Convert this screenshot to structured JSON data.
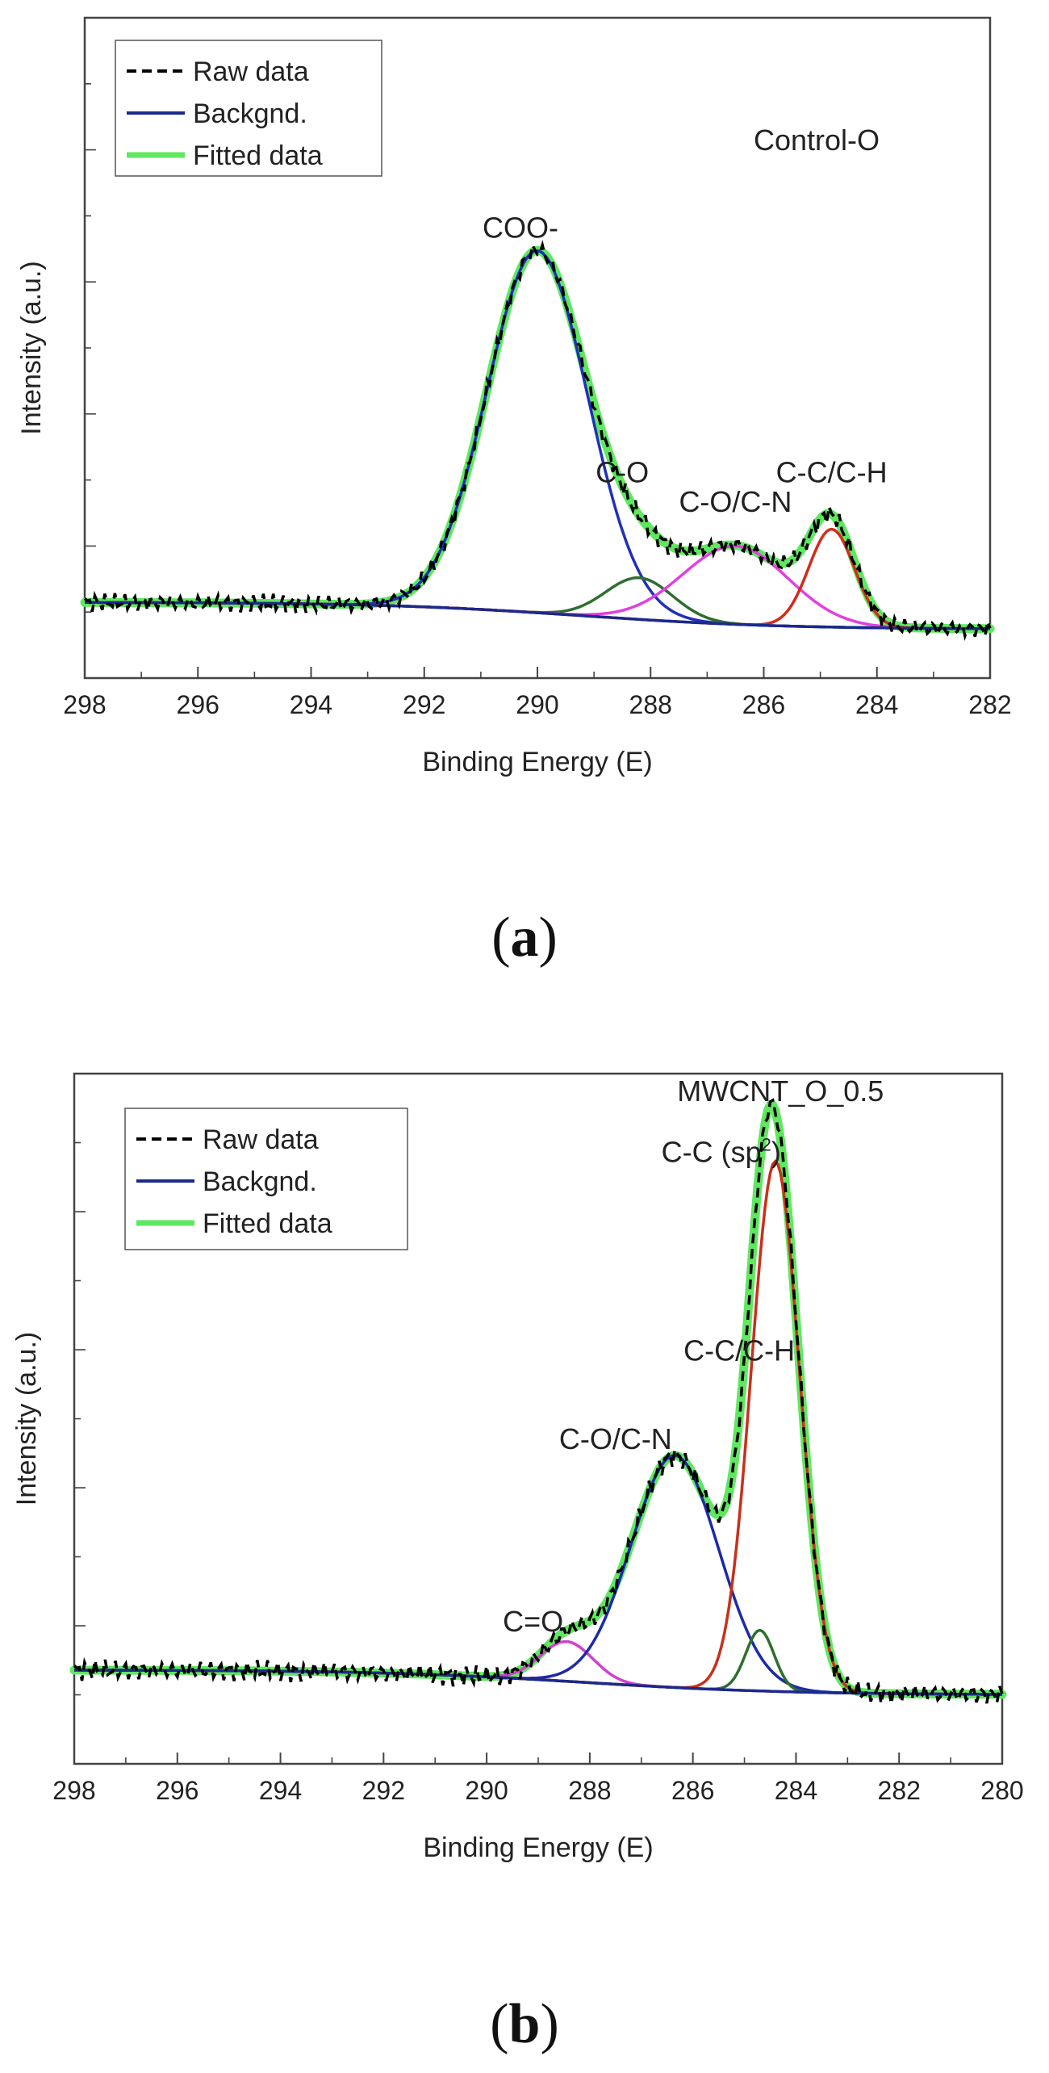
{
  "figure_labels": [
    {
      "open": "(",
      "letter": "a",
      "close": ")"
    },
    {
      "open": "(",
      "letter": "b",
      "close": ")"
    }
  ],
  "colors": {
    "raw": "#000000",
    "background": "#1a2a8c",
    "fitted": "#5fe85f",
    "coo": "#2030b8",
    "co": "#2f6e2f",
    "con": "#e040e0",
    "cch": "#d42a1a",
    "csp2": "#c8301a",
    "c_eq_o": "#d040d0",
    "con_b": "#1c2aa8",
    "cch_b": "#2f6e2f"
  },
  "chart_data": [
    {
      "type": "line",
      "title": "Control-O",
      "xlabel": "Binding Energy (E)",
      "ylabel": "Intensity (a.u.)",
      "xlim": [
        298,
        282
      ],
      "xticks": [
        298,
        296,
        294,
        292,
        290,
        288,
        286,
        284,
        282
      ],
      "ylim": [
        -0.1,
        1.25
      ],
      "legend": {
        "position": "top-left",
        "entries": [
          {
            "label": "Raw data",
            "key": "raw",
            "style": "dashed"
          },
          {
            "label": "Backgnd.",
            "key": "background",
            "style": "solid"
          },
          {
            "label": "Fitted data",
            "key": "fitted",
            "style": "solid"
          }
        ]
      },
      "background": {
        "left": 0.055,
        "right": 0.0
      },
      "peaks": [
        {
          "name": "COO-",
          "center": 290.0,
          "height": 0.74,
          "fwhm": 2.1,
          "color": "coo"
        },
        {
          "name": "C-O",
          "center": 288.2,
          "height": 0.085,
          "fwhm": 1.4,
          "color": "co"
        },
        {
          "name": "C-O/C-N",
          "center": 286.5,
          "height": 0.16,
          "fwhm": 2.2,
          "color": "con"
        },
        {
          "name": "C-C/C-H",
          "center": 284.8,
          "height": 0.2,
          "fwhm": 0.95,
          "color": "cch"
        }
      ],
      "annotations": [
        {
          "text": "COO-",
          "x": 290.3,
          "y": 0.8
        },
        {
          "text": "C-O",
          "x": 288.5,
          "y": 0.3
        },
        {
          "text": "C-O/C-N",
          "x": 286.5,
          "y": 0.24
        },
        {
          "text": "C-C/C-H",
          "x": 284.8,
          "y": 0.3
        }
      ]
    },
    {
      "type": "line",
      "title": "MWCNT_O_0.5",
      "xlabel": "Binding Energy (E)",
      "ylabel": "Intensity (a.u.)",
      "xlim": [
        298,
        280
      ],
      "xticks": [
        298,
        296,
        294,
        292,
        290,
        288,
        286,
        284,
        282,
        280
      ],
      "ylim": [
        -0.13,
        1.12
      ],
      "legend": {
        "position": "top-left",
        "entries": [
          {
            "label": "Raw data",
            "key": "raw",
            "style": "dashed"
          },
          {
            "label": "Backgnd.",
            "key": "background",
            "style": "solid"
          },
          {
            "label": "Fitted data",
            "key": "fitted",
            "style": "solid"
          }
        ]
      },
      "background": {
        "left": 0.04,
        "right": -0.005
      },
      "peaks": [
        {
          "name": "C=O",
          "center": 288.45,
          "height": 0.072,
          "fwhm": 1.2,
          "color": "c_eq_o"
        },
        {
          "name": "C-O/C-N",
          "center": 286.35,
          "height": 0.42,
          "fwhm": 2.0,
          "color": "con_b"
        },
        {
          "name": "C-C/C-H",
          "center": 284.7,
          "height": 0.11,
          "fwhm": 0.65,
          "color": "cch_b"
        },
        {
          "name": "C-C (sp2)",
          "center": 284.4,
          "height": 0.96,
          "fwhm": 1.1,
          "color": "csp2"
        }
      ],
      "annotations": [
        {
          "text": "MWCNT_O_0.5",
          "x": 284.3,
          "y": 1.07
        },
        {
          "text": "C-C (sp",
          "sup": "2",
          "close": ")",
          "x": 285.45,
          "y": 0.96
        },
        {
          "text": "C-C/C-H",
          "x": 285.1,
          "y": 0.6
        },
        {
          "text": "C-O/C-N",
          "x": 287.5,
          "y": 0.44
        },
        {
          "text": "C=O",
          "x": 289.1,
          "y": 0.11
        }
      ]
    }
  ]
}
